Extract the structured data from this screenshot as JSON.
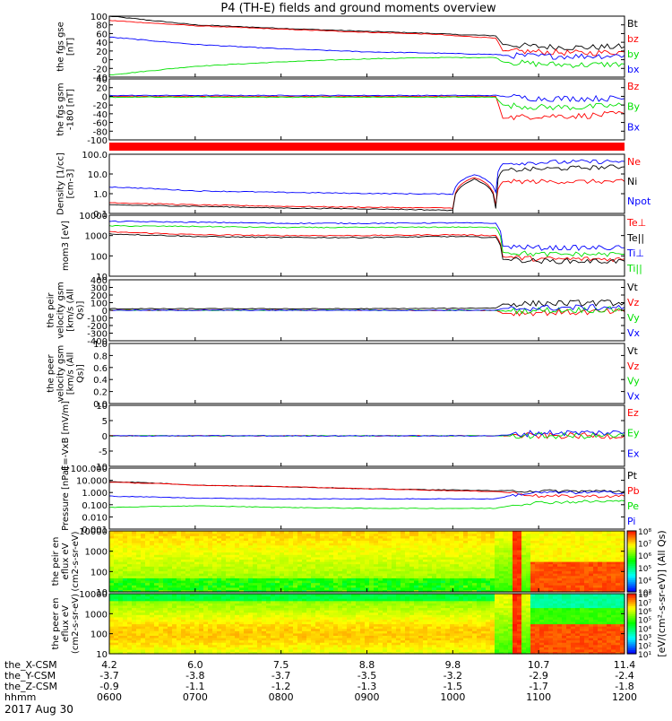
{
  "title": "P4 (TH-E) fields and ground moments overview",
  "date_label": "2017 Aug 30",
  "colors": {
    "black": "#000000",
    "red": "#ff0000",
    "green": "#00e000",
    "blue": "#0000ff"
  },
  "chart_data": [
    {
      "id": "fgs",
      "type": "line",
      "ylabel": "the fgs gse [nT]",
      "ylim": [
        -40,
        100
      ],
      "yticks": [
        "100",
        "80",
        "60",
        "40",
        "20",
        "0",
        "-20",
        "-40"
      ],
      "legend": [
        {
          "name": "Bt",
          "color": "#000000"
        },
        {
          "name": "bz",
          "color": "#ff0000"
        },
        {
          "name": "by",
          "color": "#00e000"
        },
        {
          "name": "bx",
          "color": "#0000ff"
        }
      ],
      "series": [
        {
          "name": "Bt",
          "x": [
            "06:00",
            "07:00",
            "08:00",
            "09:00",
            "09:50",
            "10:00",
            "10:30",
            "10:35",
            "11:00",
            "11:30",
            "12:00"
          ],
          "y": [
            100,
            80,
            72,
            65,
            60,
            58,
            55,
            35,
            30,
            28,
            30
          ]
        },
        {
          "name": "bz",
          "x": [
            "06:00",
            "07:00",
            "08:00",
            "09:00",
            "09:50",
            "10:00",
            "10:30",
            "10:35",
            "11:00",
            "11:30",
            "12:00"
          ],
          "y": [
            90,
            78,
            70,
            63,
            58,
            55,
            50,
            20,
            18,
            15,
            18
          ]
        },
        {
          "name": "by",
          "x": [
            "06:00",
            "07:00",
            "08:00",
            "09:00",
            "09:50",
            "10:00",
            "10:30",
            "10:35",
            "11:00",
            "11:30",
            "12:00"
          ],
          "y": [
            -35,
            -15,
            -5,
            2,
            5,
            5,
            5,
            -5,
            -10,
            -12,
            -10
          ]
        },
        {
          "name": "bx",
          "x": [
            "06:00",
            "07:00",
            "08:00",
            "09:00",
            "09:50",
            "10:00",
            "10:30",
            "10:35",
            "11:00",
            "11:30",
            "12:00"
          ],
          "y": [
            52,
            35,
            25,
            18,
            15,
            14,
            12,
            10,
            8,
            8,
            10
          ]
        }
      ]
    },
    {
      "id": "fgs-gsm",
      "type": "line",
      "ylabel": "the fgs gsm -180 [nT]",
      "ylim": [
        -100,
        40
      ],
      "yticks": [
        "40",
        "20",
        "0",
        "-20",
        "-40",
        "-60",
        "-80",
        "-100"
      ],
      "legend": [
        {
          "name": "Bz",
          "color": "#ff0000"
        },
        {
          "name": "By",
          "color": "#00e000"
        },
        {
          "name": "Bx",
          "color": "#0000ff"
        }
      ],
      "series": [
        {
          "name": "Bz",
          "x": [
            "06:00",
            "07:00",
            "08:00",
            "09:00",
            "10:00",
            "10:30",
            "10:35",
            "11:00",
            "11:30",
            "12:00"
          ],
          "y": [
            0,
            0,
            0,
            0,
            0,
            0,
            -50,
            -45,
            -45,
            -40
          ]
        },
        {
          "name": "By",
          "x": [
            "06:00",
            "07:00",
            "08:00",
            "09:00",
            "10:00",
            "10:30",
            "10:35",
            "11:00",
            "11:30",
            "12:00"
          ],
          "y": [
            -2,
            -2,
            -2,
            -2,
            -2,
            -2,
            -20,
            -25,
            -25,
            -20
          ]
        },
        {
          "name": "Bx",
          "x": [
            "06:00",
            "07:00",
            "08:00",
            "09:00",
            "10:00",
            "10:30",
            "10:35",
            "11:00",
            "11:30",
            "12:00"
          ],
          "y": [
            2,
            2,
            2,
            2,
            2,
            2,
            0,
            -5,
            -5,
            -5
          ]
        }
      ]
    },
    {
      "id": "density",
      "type": "line",
      "yscale": "log",
      "ylabel": "Density [1/cc] [cm-3]",
      "ylim": [
        0.1,
        200
      ],
      "yticks": [
        "100.0",
        "10.0",
        "1.0",
        "0.1"
      ],
      "legend": [
        {
          "name": "Ne",
          "color": "#ff0000"
        },
        {
          "name": "Ni",
          "color": "#000000"
        },
        {
          "name": "Npot",
          "color": "#0000ff"
        }
      ],
      "series": [
        {
          "name": "Ne",
          "x": [
            "06:00",
            "07:00",
            "08:00",
            "09:00",
            "10:00",
            "10:15",
            "10:30",
            "10:35",
            "11:00",
            "12:00"
          ],
          "y": [
            0.4,
            0.3,
            0.25,
            0.22,
            0.2,
            10,
            0.3,
            6,
            6,
            6
          ]
        },
        {
          "name": "Ni",
          "x": [
            "06:00",
            "07:00",
            "08:00",
            "09:00",
            "10:00",
            "10:15",
            "10:30",
            "10:35",
            "11:00",
            "12:00"
          ],
          "y": [
            0.3,
            0.25,
            0.2,
            0.18,
            0.15,
            8,
            0.2,
            25,
            30,
            40
          ]
        },
        {
          "name": "Npot",
          "x": [
            "06:00",
            "07:00",
            "08:00",
            "09:00",
            "10:00",
            "10:15",
            "10:30",
            "10:35",
            "11:00",
            "12:00"
          ],
          "y": [
            3,
            1.8,
            1.5,
            1.3,
            1.2,
            15,
            1.5,
            60,
            70,
            80
          ]
        }
      ]
    },
    {
      "id": "temperature",
      "type": "line",
      "yscale": "log",
      "ylabel": "mom3 [eV]",
      "ylim": [
        10,
        10000
      ],
      "yticks": [
        "10000",
        "1000",
        "100",
        "10"
      ],
      "legend": [
        {
          "name": "Te⊥",
          "color": "#ff0000"
        },
        {
          "name": "Te||",
          "color": "#000000"
        },
        {
          "name": "Ti⊥",
          "color": "#0000ff"
        },
        {
          "name": "Ti||",
          "color": "#00e000"
        }
      ],
      "series": [
        {
          "name": "Te⊥",
          "x": [
            "06:00",
            "07:00",
            "08:00",
            "09:00",
            "10:00",
            "10:30",
            "10:35",
            "11:00",
            "12:00"
          ],
          "y": [
            1500,
            1100,
            1000,
            1000,
            1100,
            1000,
            90,
            70,
            70
          ]
        },
        {
          "name": "Te||",
          "x": [
            "06:00",
            "07:00",
            "08:00",
            "09:00",
            "10:00",
            "10:30",
            "10:35",
            "11:00",
            "12:00"
          ],
          "y": [
            1200,
            900,
            800,
            800,
            900,
            800,
            70,
            55,
            55
          ]
        },
        {
          "name": "Ti⊥",
          "x": [
            "06:00",
            "07:00",
            "08:00",
            "09:00",
            "10:00",
            "10:30",
            "10:35",
            "11:00",
            "12:00"
          ],
          "y": [
            5000,
            4500,
            4000,
            4000,
            4200,
            4000,
            300,
            250,
            250
          ]
        },
        {
          "name": "Ti||",
          "x": [
            "06:00",
            "07:00",
            "08:00",
            "09:00",
            "10:00",
            "10:30",
            "10:35",
            "11:00",
            "12:00"
          ],
          "y": [
            3000,
            2800,
            2500,
            2500,
            2600,
            2500,
            150,
            120,
            120
          ]
        }
      ]
    },
    {
      "id": "velocity-peir",
      "type": "line",
      "ylabel": "the peir velocity gsm [km/s (All Qs)]",
      "ylim": [
        -400,
        400
      ],
      "yticks": [
        "400",
        "300",
        "200",
        "100",
        "0",
        "-100",
        "-200",
        "-300",
        "-400"
      ],
      "legend": [
        {
          "name": "Vt",
          "color": "#000000"
        },
        {
          "name": "Vz",
          "color": "#ff0000"
        },
        {
          "name": "Vy",
          "color": "#00e000"
        },
        {
          "name": "Vx",
          "color": "#0000ff"
        }
      ],
      "series": [
        {
          "name": "Vt",
          "x": [
            "06:00",
            "07:00",
            "08:00",
            "09:00",
            "10:00",
            "10:30",
            "10:35",
            "11:00",
            "12:00"
          ],
          "y": [
            20,
            20,
            20,
            20,
            25,
            30,
            80,
            90,
            100
          ]
        },
        {
          "name": "Vz",
          "x": [
            "06:00",
            "07:00",
            "08:00",
            "09:00",
            "10:00",
            "10:30",
            "10:35",
            "11:00",
            "12:00"
          ],
          "y": [
            0,
            0,
            0,
            0,
            0,
            0,
            -40,
            -30,
            -20
          ]
        },
        {
          "name": "Vy",
          "x": [
            "06:00",
            "07:00",
            "08:00",
            "09:00",
            "10:00",
            "10:30",
            "10:35",
            "11:00",
            "12:00"
          ],
          "y": [
            0,
            0,
            0,
            0,
            0,
            0,
            -10,
            0,
            10
          ]
        },
        {
          "name": "Vx",
          "x": [
            "06:00",
            "07:00",
            "08:00",
            "09:00",
            "10:00",
            "10:30",
            "10:35",
            "11:00",
            "12:00"
          ],
          "y": [
            0,
            0,
            0,
            0,
            0,
            0,
            20,
            30,
            40
          ]
        }
      ]
    },
    {
      "id": "velocity-peer",
      "type": "line",
      "ylabel": "the peer velocity gsm [km/s (All Qs)]",
      "ylim": [
        0,
        1
      ],
      "yticks": [
        "1.0",
        "0.8",
        "0.6",
        "0.4",
        "0.2",
        "0.0"
      ],
      "legend": [
        {
          "name": "Vt",
          "color": "#000000"
        },
        {
          "name": "Vz",
          "color": "#ff0000"
        },
        {
          "name": "Vy",
          "color": "#00e000"
        },
        {
          "name": "Vx",
          "color": "#0000ff"
        }
      ],
      "series": []
    },
    {
      "id": "efield",
      "type": "line",
      "ylabel": "E=-VxB [mV/m]",
      "ylim": [
        -10,
        10
      ],
      "yticks": [
        "10",
        "5",
        "0",
        "-5",
        "-10"
      ],
      "legend": [
        {
          "name": "Ez",
          "color": "#ff0000"
        },
        {
          "name": "Ey",
          "color": "#00e000"
        },
        {
          "name": "Ex",
          "color": "#0000ff"
        }
      ],
      "series": [
        {
          "name": "Ez",
          "x": [
            "06:00",
            "07:00",
            "08:00",
            "09:00",
            "10:00",
            "10:30",
            "11:00",
            "12:00"
          ],
          "y": [
            0,
            0,
            0,
            0,
            0,
            0,
            0,
            0
          ]
        },
        {
          "name": "Ey",
          "x": [
            "06:00",
            "07:00",
            "08:00",
            "09:00",
            "10:00",
            "10:30",
            "11:00",
            "12:00"
          ],
          "y": [
            0,
            0,
            0,
            0,
            0,
            0,
            0,
            0
          ]
        },
        {
          "name": "Ex",
          "x": [
            "06:00",
            "07:00",
            "08:00",
            "09:00",
            "10:00",
            "10:30",
            "11:00",
            "12:00"
          ],
          "y": [
            0,
            0,
            0,
            0,
            0,
            0,
            1,
            1
          ]
        }
      ]
    },
    {
      "id": "pressure",
      "type": "line",
      "yscale": "log",
      "ylabel": "Pressure [nPa]",
      "ylim": [
        0.001,
        100
      ],
      "yticks": [
        "100.000",
        "10.000",
        "1.000",
        "0.100",
        "0.010",
        "0.001"
      ],
      "legend": [
        {
          "name": "Pt",
          "color": "#000000"
        },
        {
          "name": "Pb",
          "color": "#ff0000"
        },
        {
          "name": "Pe",
          "color": "#00e000"
        },
        {
          "name": "Pi",
          "color": "#0000ff"
        }
      ],
      "series": [
        {
          "name": "Pt",
          "x": [
            "06:00",
            "07:00",
            "08:00",
            "09:00",
            "10:00",
            "10:30",
            "11:00",
            "12:00"
          ],
          "y": [
            8,
            4,
            3,
            2,
            1.6,
            1.4,
            1.3,
            1.3
          ]
        },
        {
          "name": "Pb",
          "x": [
            "06:00",
            "07:00",
            "08:00",
            "09:00",
            "10:00",
            "10:30",
            "11:00",
            "12:00"
          ],
          "y": [
            7,
            4,
            3,
            2,
            1.4,
            1.2,
            0.5,
            0.5
          ]
        },
        {
          "name": "Pe",
          "x": [
            "06:00",
            "07:00",
            "08:00",
            "09:00",
            "10:00",
            "10:30",
            "11:00",
            "12:00"
          ],
          "y": [
            0.06,
            0.08,
            0.06,
            0.05,
            0.05,
            0.05,
            0.15,
            0.2
          ]
        },
        {
          "name": "Pi",
          "x": [
            "06:00",
            "07:00",
            "08:00",
            "09:00",
            "10:00",
            "10:30",
            "11:00",
            "12:00"
          ],
          "y": [
            0.5,
            0.35,
            0.3,
            0.3,
            0.3,
            0.3,
            1.0,
            1.0
          ]
        }
      ]
    },
    {
      "id": "peir-spectrogram",
      "type": "heatmap",
      "ylabel": "the peir en eflux eV (cm2-s-sr-eV)",
      "yscale": "log",
      "ylim": [
        5,
        30000
      ],
      "yticks": [
        "10000",
        "1000",
        "100",
        "10"
      ],
      "colorbar": {
        "min_exp": 3,
        "max_exp": 8
      }
    },
    {
      "id": "peer-spectrogram",
      "type": "heatmap",
      "ylabel": "the peer en eflux eV (cm2-s-sr-eV)",
      "yscale": "log",
      "ylim": [
        5,
        30000
      ],
      "yticks": [
        "10000",
        "1000",
        "100",
        "10"
      ],
      "colorbar": {
        "min_exp": 1,
        "max_exp": 8
      }
    }
  ],
  "colorbar_label": "[eV/(cm²-s-sr-eV)] (All Qs)",
  "xaxis": {
    "ticks": [
      "0600",
      "0700",
      "0800",
      "0900",
      "1000",
      "1100",
      "1200"
    ],
    "rows": [
      {
        "label": "the_X-CSM",
        "values": [
          "4.2",
          "6.0",
          "7.5",
          "8.8",
          "9.8",
          "10.7",
          "11.4"
        ]
      },
      {
        "label": "the_Y-CSM",
        "values": [
          "-3.7",
          "-3.8",
          "-3.7",
          "-3.5",
          "-3.2",
          "-2.9",
          "-2.4"
        ]
      },
      {
        "label": "the_Z-CSM",
        "values": [
          "-0.9",
          "-1.1",
          "-1.2",
          "-1.3",
          "-1.5",
          "-1.7",
          "-1.8"
        ]
      },
      {
        "label": "hhmm",
        "values": [
          "0600",
          "0700",
          "0800",
          "0900",
          "1000",
          "1100",
          "1200"
        ]
      }
    ]
  }
}
